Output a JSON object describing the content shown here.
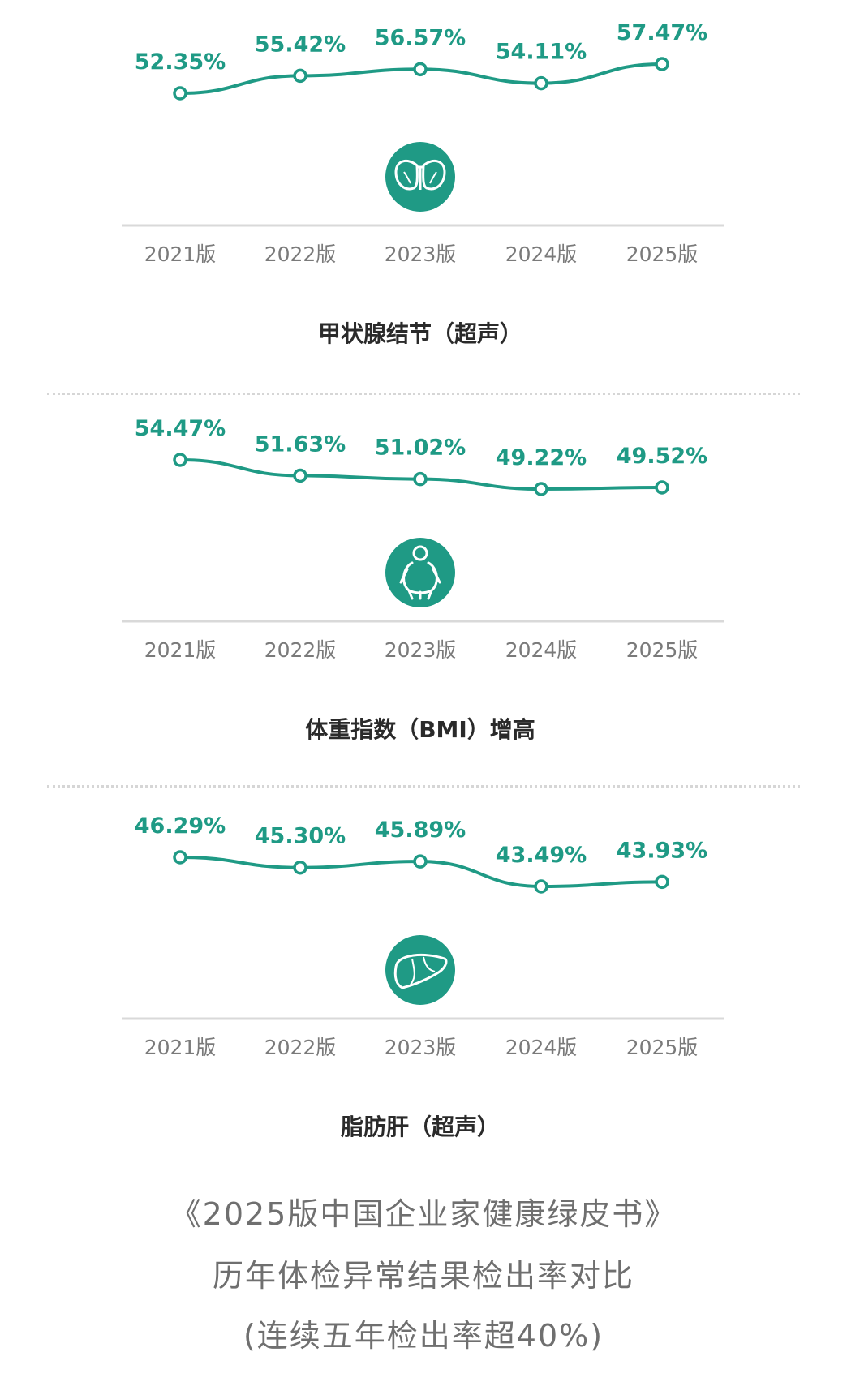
{
  "colors": {
    "accent": "#1f9a85",
    "baseline": "#d9d9d9",
    "year_text": "#7a7a7a",
    "title_text": "#2a2a2a",
    "caption_text": "#6f6f6f"
  },
  "chart_data": [
    {
      "type": "line",
      "title": "甲状腺结节（超声）",
      "icon": "thyroid-icon",
      "categories": [
        "2021版",
        "2022版",
        "2023版",
        "2024版",
        "2025版"
      ],
      "values": [
        52.35,
        55.42,
        56.57,
        54.11,
        57.47
      ],
      "labels": [
        "52.35%",
        "55.42%",
        "56.57%",
        "54.11%",
        "57.47%"
      ]
    },
    {
      "type": "line",
      "title": "体重指数（BMI）增高",
      "icon": "body-icon",
      "categories": [
        "2021版",
        "2022版",
        "2023版",
        "2024版",
        "2025版"
      ],
      "values": [
        54.47,
        51.63,
        51.02,
        49.22,
        49.52
      ],
      "labels": [
        "54.47%",
        "51.63%",
        "51.02%",
        "49.22%",
        "49.52%"
      ]
    },
    {
      "type": "line",
      "title": "脂肪肝（超声）",
      "icon": "liver-icon",
      "categories": [
        "2021版",
        "2022版",
        "2023版",
        "2024版",
        "2025版"
      ],
      "values": [
        46.29,
        45.3,
        45.89,
        43.49,
        43.93
      ],
      "labels": [
        "46.29%",
        "45.30%",
        "45.89%",
        "43.49%",
        "43.93%"
      ]
    }
  ],
  "caption": {
    "line1": "《2025版中国企业家健康绿皮书》",
    "line2": "历年体检异常结果检出率对比",
    "line3": "(连续五年检出率超40%)"
  }
}
